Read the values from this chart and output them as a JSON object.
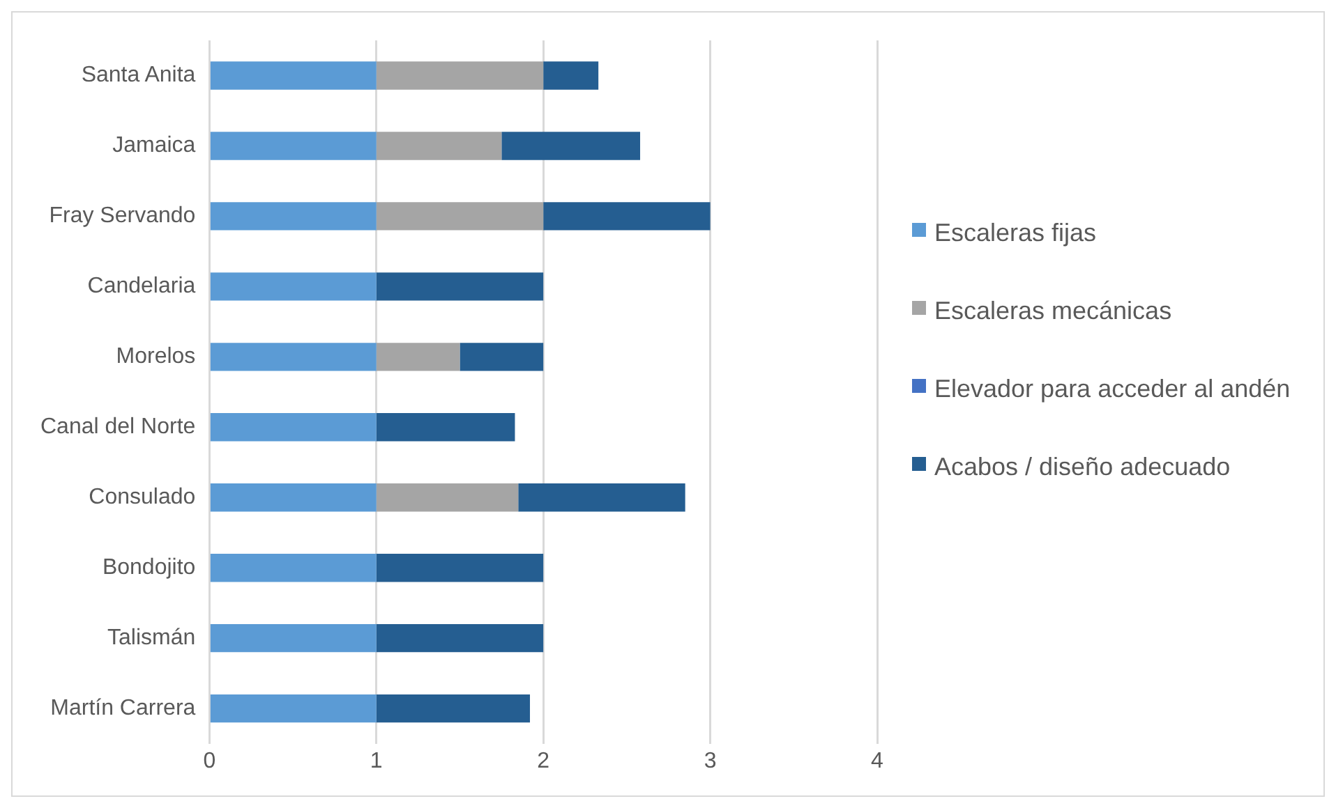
{
  "chart_data": {
    "type": "bar",
    "orientation": "horizontal",
    "stacked": true,
    "categories": [
      "Santa Anita",
      "Jamaica",
      "Fray Servando",
      "Candelaria",
      "Morelos",
      "Canal del Norte",
      "Consulado",
      "Bondojito",
      "Talismán",
      "Martín Carrera"
    ],
    "series": [
      {
        "name": "Escaleras fijas",
        "color": "#5b9bd5",
        "values": [
          1,
          1,
          1,
          1,
          1,
          1,
          1,
          1,
          1,
          1
        ]
      },
      {
        "name": "Escaleras mecánicas",
        "color": "#a5a5a5",
        "values": [
          1,
          0.75,
          1,
          0,
          0.5,
          0,
          0.85,
          0,
          0,
          0
        ]
      },
      {
        "name": "Elevador para acceder al andén",
        "color": "#4472c4",
        "values": [
          0,
          0,
          0,
          0,
          0,
          0,
          0,
          0,
          0,
          0
        ]
      },
      {
        "name": "Acabos / diseño adecuado",
        "color": "#255e91",
        "values": [
          0.33,
          0.83,
          1,
          1,
          0.5,
          0.83,
          1,
          1,
          1,
          0.92
        ]
      }
    ],
    "xlim": [
      0,
      4
    ],
    "xticks": [
      0,
      1,
      2,
      3,
      4
    ],
    "grid": "x",
    "legend": "right"
  }
}
